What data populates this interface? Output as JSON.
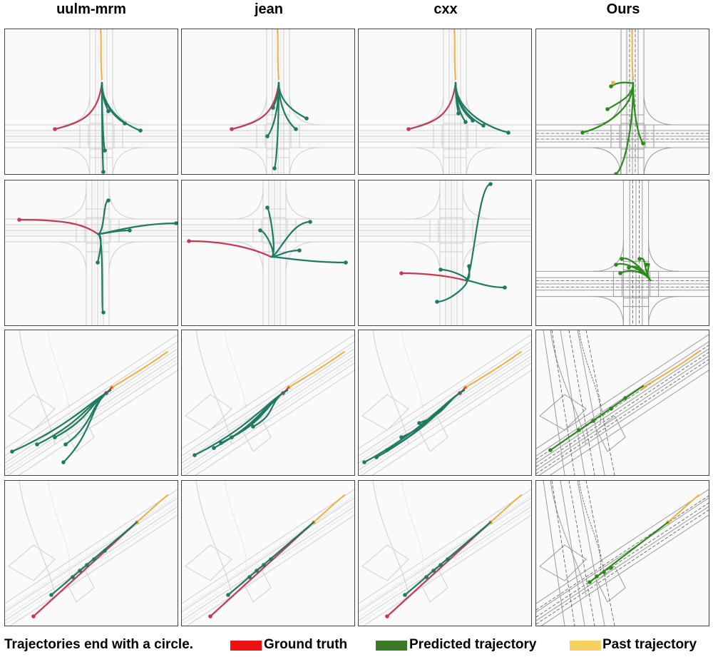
{
  "columns": [
    "uulm-mrm",
    "jean",
    "cxx",
    "Ours"
  ],
  "legend": {
    "note": "Trajectories end with a circle.",
    "items": [
      {
        "label": "Ground truth",
        "color": "#ee1111"
      },
      {
        "label": "Predicted trajectory",
        "color": "#3a7a25"
      },
      {
        "label": "Past trajectory",
        "color": "#f8d060"
      }
    ]
  },
  "colors": {
    "gt_plot": "#c43a52",
    "pred_baseline": "#1f7a62",
    "pred_ours": "#2b8a1c",
    "past": "#f0b040",
    "road": "#cfcfcf",
    "road_ours": "#9a9a9a"
  }
}
